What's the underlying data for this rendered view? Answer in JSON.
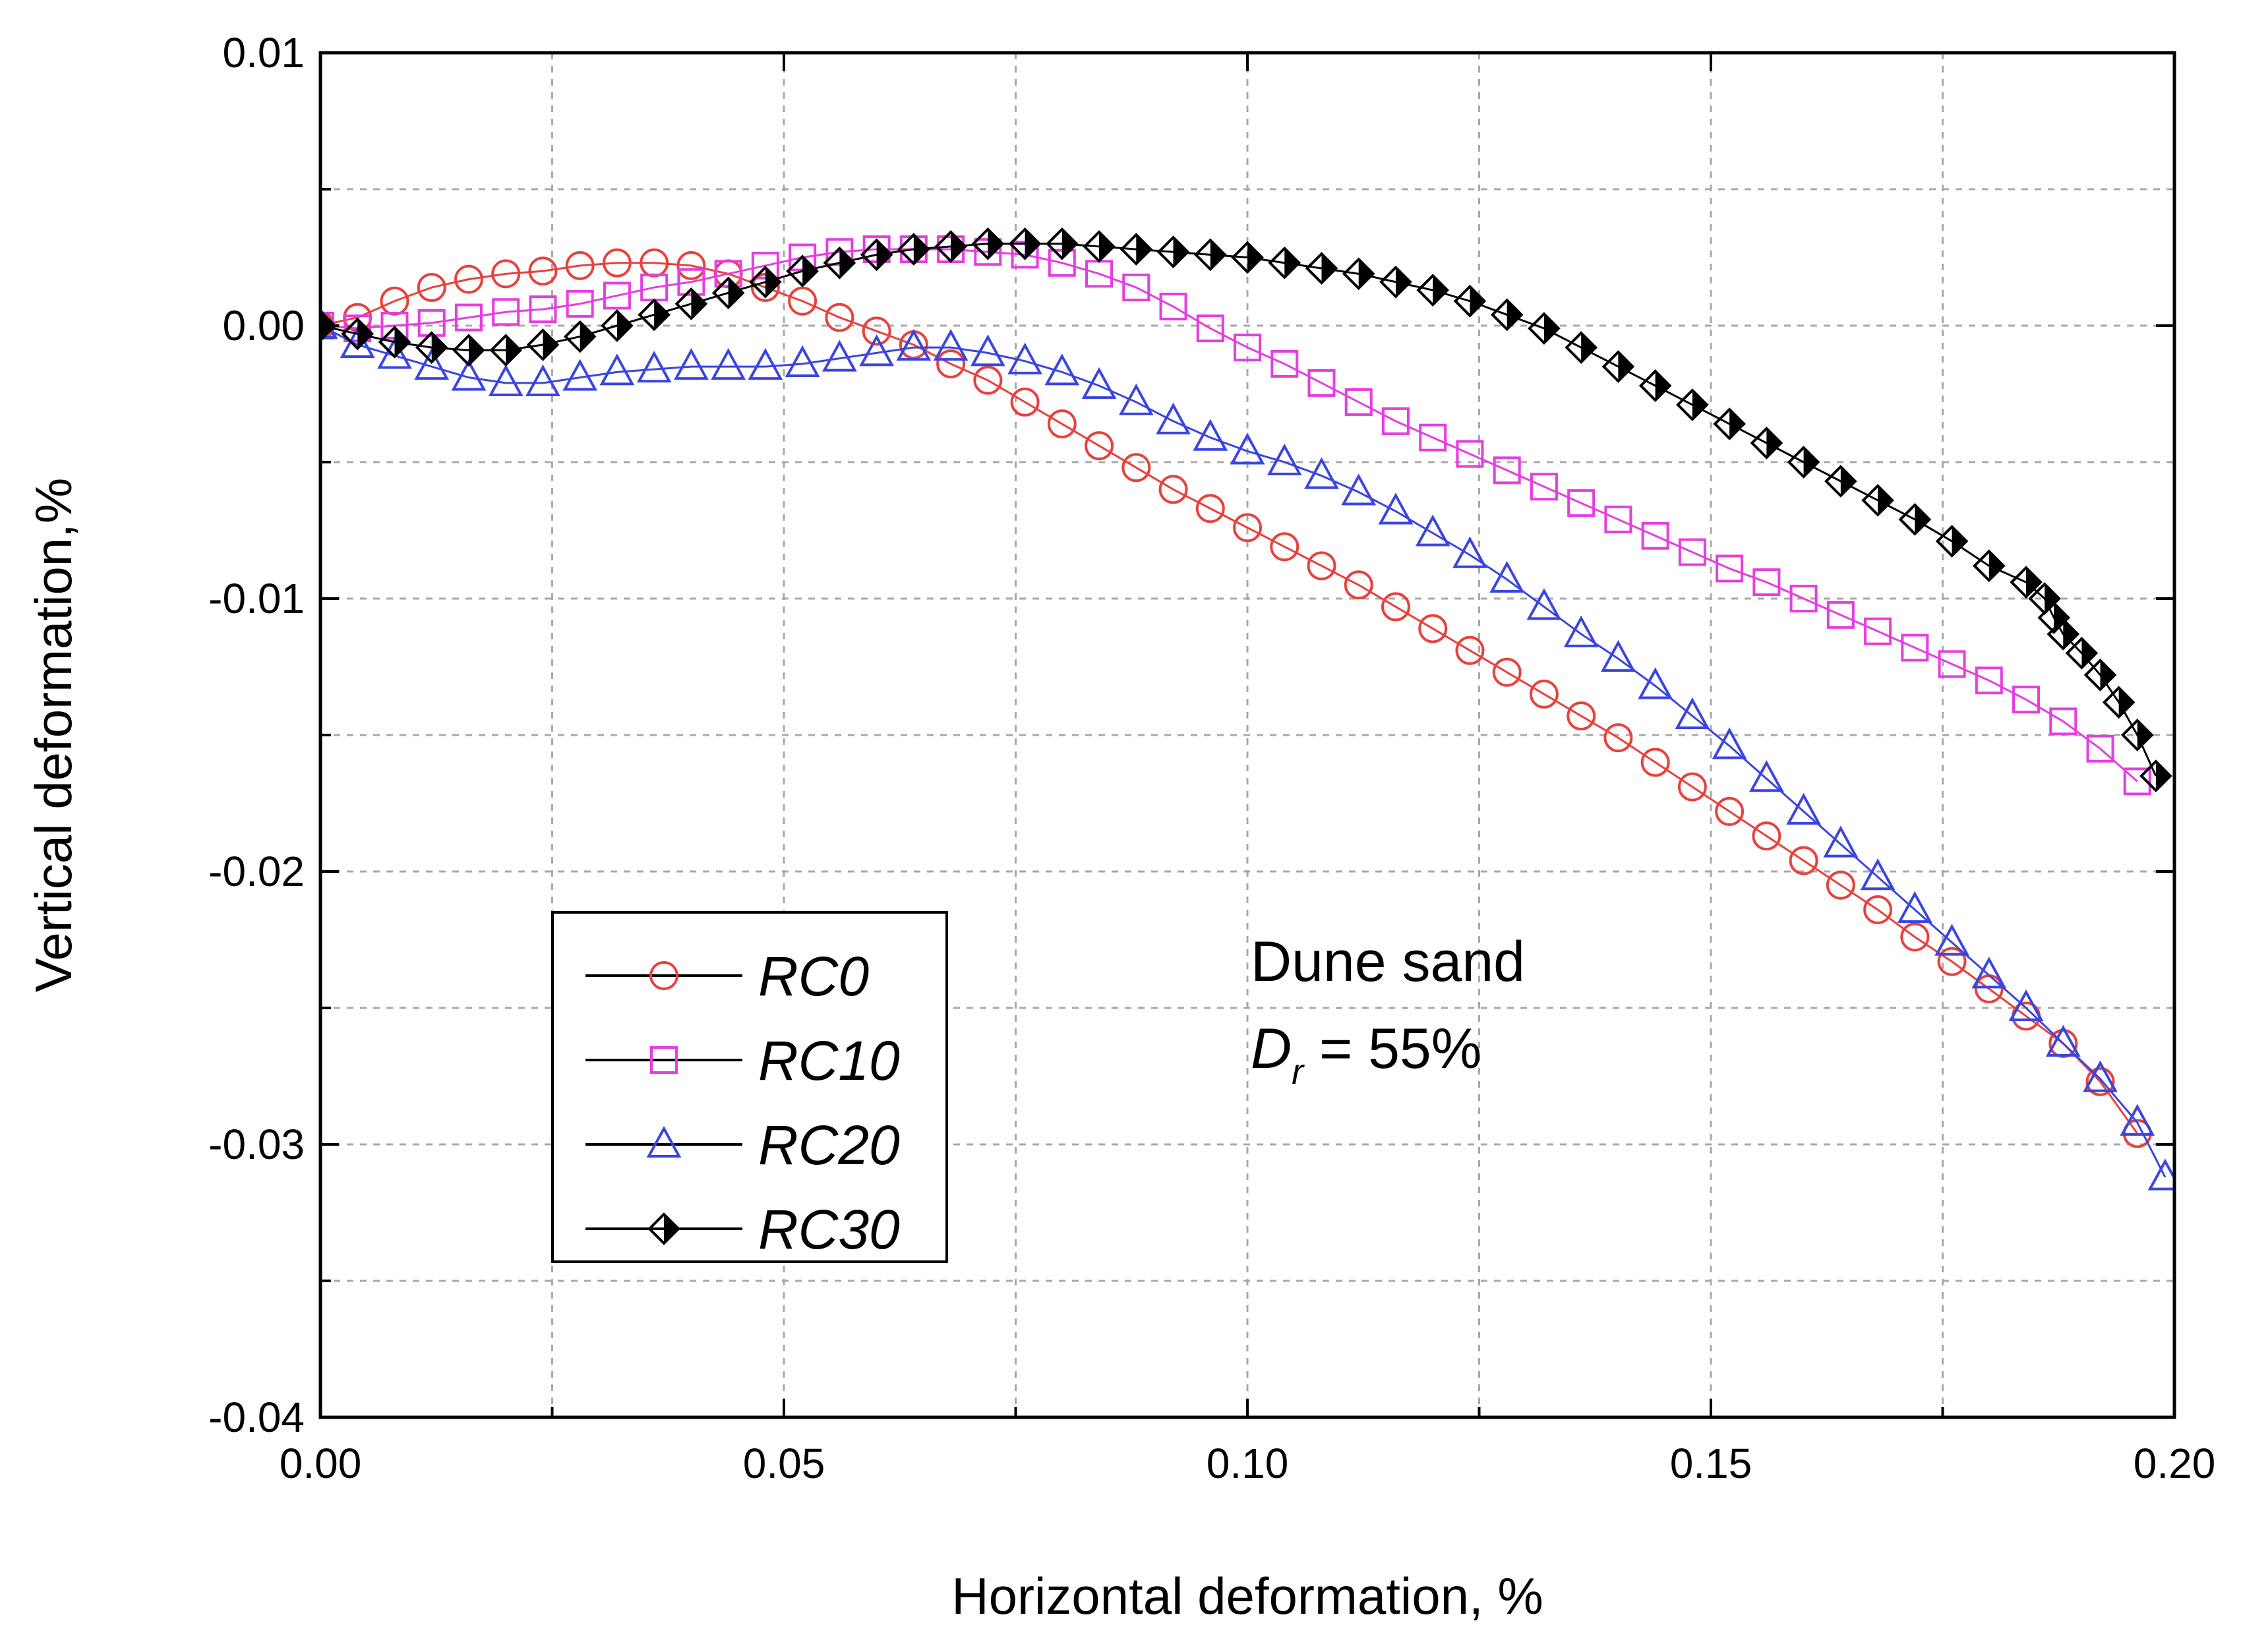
{
  "chart_data": {
    "type": "scatter",
    "title": "",
    "xlabel": "Horizontal deformation, %",
    "ylabel": "Vertical deformation,%",
    "xlim": [
      0.0,
      0.2
    ],
    "ylim": [
      -0.04,
      0.01
    ],
    "x_ticks": [
      0.0,
      0.05,
      0.1,
      0.15,
      0.2
    ],
    "x_tick_labels": [
      "0.00",
      "0.05",
      "0.10",
      "0.15",
      "0.20"
    ],
    "y_ticks": [
      0.01,
      0.0,
      -0.01,
      -0.02,
      -0.03,
      -0.04
    ],
    "y_tick_labels": [
      "0.01",
      "0.00",
      "-0.01",
      "-0.02",
      "-0.03",
      "-0.04"
    ],
    "grid": true,
    "legend_position": "lower-left",
    "annotation": {
      "line1": "Dune sand",
      "symbol": "D",
      "subscript": "r",
      "line2_rest": " = 55%"
    },
    "series": [
      {
        "name": "RC0",
        "marker": "circle",
        "color": "#e8413c",
        "x": [
          0.0,
          0.004,
          0.008,
          0.012,
          0.016,
          0.02,
          0.024,
          0.028,
          0.032,
          0.036,
          0.04,
          0.044,
          0.048,
          0.052,
          0.056,
          0.06,
          0.064,
          0.068,
          0.072,
          0.076,
          0.08,
          0.084,
          0.088,
          0.092,
          0.096,
          0.1,
          0.104,
          0.108,
          0.112,
          0.116,
          0.12,
          0.124,
          0.128,
          0.132,
          0.136,
          0.14,
          0.144,
          0.148,
          0.152,
          0.156,
          0.16,
          0.164,
          0.168,
          0.172,
          0.176,
          0.18,
          0.184,
          0.188,
          0.192,
          0.196
        ],
        "y": [
          0.0,
          0.0003,
          0.0009,
          0.0014,
          0.0017,
          0.0019,
          0.002,
          0.0022,
          0.0023,
          0.0023,
          0.0022,
          0.0019,
          0.0014,
          0.0009,
          0.0003,
          -0.0002,
          -0.0007,
          -0.0014,
          -0.002,
          -0.0028,
          -0.0036,
          -0.0044,
          -0.0052,
          -0.006,
          -0.0067,
          -0.0074,
          -0.0081,
          -0.0088,
          -0.0095,
          -0.0103,
          -0.0111,
          -0.0119,
          -0.0127,
          -0.0135,
          -0.0143,
          -0.0151,
          -0.016,
          -0.0169,
          -0.0178,
          -0.0187,
          -0.0196,
          -0.0205,
          -0.0214,
          -0.0224,
          -0.0233,
          -0.0243,
          -0.0253,
          -0.0263,
          -0.0277,
          -0.0296
        ]
      },
      {
        "name": "RC10",
        "marker": "square",
        "color": "#e53ee0",
        "x": [
          0.0,
          0.004,
          0.008,
          0.012,
          0.016,
          0.02,
          0.024,
          0.028,
          0.032,
          0.036,
          0.04,
          0.044,
          0.048,
          0.052,
          0.056,
          0.06,
          0.064,
          0.068,
          0.072,
          0.076,
          0.08,
          0.084,
          0.088,
          0.092,
          0.096,
          0.1,
          0.104,
          0.108,
          0.112,
          0.116,
          0.12,
          0.124,
          0.128,
          0.132,
          0.136,
          0.14,
          0.144,
          0.148,
          0.152,
          0.156,
          0.16,
          0.164,
          0.168,
          0.172,
          0.176,
          0.18,
          0.184,
          0.188,
          0.192,
          0.196
        ],
        "y": [
          0.0,
          -0.0001,
          0.0,
          0.0001,
          0.0003,
          0.0005,
          0.0006,
          0.0008,
          0.0011,
          0.0014,
          0.0016,
          0.0019,
          0.0022,
          0.0025,
          0.0027,
          0.0028,
          0.0028,
          0.0028,
          0.0027,
          0.0026,
          0.0023,
          0.0019,
          0.0014,
          0.0007,
          -0.0001,
          -0.0008,
          -0.0014,
          -0.0021,
          -0.0028,
          -0.0035,
          -0.0041,
          -0.0047,
          -0.0053,
          -0.0059,
          -0.0065,
          -0.0071,
          -0.0077,
          -0.0083,
          -0.0089,
          -0.0094,
          -0.01,
          -0.0106,
          -0.0112,
          -0.0118,
          -0.0124,
          -0.013,
          -0.0137,
          -0.0145,
          -0.0155,
          -0.0167
        ]
      },
      {
        "name": "RC20",
        "marker": "triangle",
        "color": "#3a45e0",
        "x": [
          0.0,
          0.004,
          0.008,
          0.012,
          0.016,
          0.02,
          0.024,
          0.028,
          0.032,
          0.036,
          0.04,
          0.044,
          0.048,
          0.052,
          0.056,
          0.06,
          0.064,
          0.068,
          0.072,
          0.076,
          0.08,
          0.084,
          0.088,
          0.092,
          0.096,
          0.1,
          0.104,
          0.108,
          0.112,
          0.116,
          0.12,
          0.124,
          0.128,
          0.132,
          0.136,
          0.14,
          0.144,
          0.148,
          0.152,
          0.156,
          0.16,
          0.164,
          0.168,
          0.172,
          0.176,
          0.18,
          0.184,
          0.188,
          0.192,
          0.196,
          0.199
        ],
        "y": [
          0.0,
          -0.0007,
          -0.0011,
          -0.0015,
          -0.0019,
          -0.0021,
          -0.0021,
          -0.0019,
          -0.0017,
          -0.0016,
          -0.0015,
          -0.0015,
          -0.0015,
          -0.0014,
          -0.0012,
          -0.001,
          -0.0008,
          -0.0008,
          -0.001,
          -0.0013,
          -0.0017,
          -0.0022,
          -0.0028,
          -0.0035,
          -0.0041,
          -0.0046,
          -0.005,
          -0.0055,
          -0.0061,
          -0.0068,
          -0.0076,
          -0.0084,
          -0.0093,
          -0.0103,
          -0.0113,
          -0.0122,
          -0.0132,
          -0.0143,
          -0.0154,
          -0.0166,
          -0.0178,
          -0.019,
          -0.0202,
          -0.0214,
          -0.0226,
          -0.0238,
          -0.025,
          -0.0263,
          -0.0276,
          -0.0292,
          -0.0312
        ]
      },
      {
        "name": "RC30",
        "marker": "half-filled-diamond",
        "color": "#000000",
        "x": [
          0.0,
          0.004,
          0.008,
          0.012,
          0.016,
          0.02,
          0.024,
          0.028,
          0.032,
          0.036,
          0.04,
          0.044,
          0.048,
          0.052,
          0.056,
          0.06,
          0.064,
          0.068,
          0.072,
          0.076,
          0.08,
          0.084,
          0.088,
          0.092,
          0.096,
          0.1,
          0.104,
          0.108,
          0.112,
          0.116,
          0.12,
          0.124,
          0.128,
          0.132,
          0.136,
          0.14,
          0.144,
          0.148,
          0.152,
          0.156,
          0.16,
          0.164,
          0.168,
          0.172,
          0.176,
          0.18,
          0.184,
          0.186,
          0.187,
          0.188,
          0.19,
          0.192,
          0.194,
          0.196,
          0.198
        ],
        "y": [
          0.0,
          -0.0003,
          -0.0006,
          -0.0008,
          -0.0009,
          -0.0009,
          -0.0007,
          -0.0004,
          0.0,
          0.0004,
          0.0008,
          0.0012,
          0.0016,
          0.002,
          0.0023,
          0.0026,
          0.0028,
          0.0029,
          0.003,
          0.003,
          0.003,
          0.0029,
          0.0028,
          0.0027,
          0.0026,
          0.0025,
          0.0023,
          0.0021,
          0.0019,
          0.0016,
          0.0013,
          0.0009,
          0.0004,
          -0.0001,
          -0.0008,
          -0.0015,
          -0.0022,
          -0.0029,
          -0.0036,
          -0.0043,
          -0.005,
          -0.0057,
          -0.0064,
          -0.0071,
          -0.0079,
          -0.0088,
          -0.0094,
          -0.01,
          -0.0107,
          -0.0113,
          -0.012,
          -0.0128,
          -0.0138,
          -0.015,
          -0.0165
        ]
      }
    ]
  }
}
